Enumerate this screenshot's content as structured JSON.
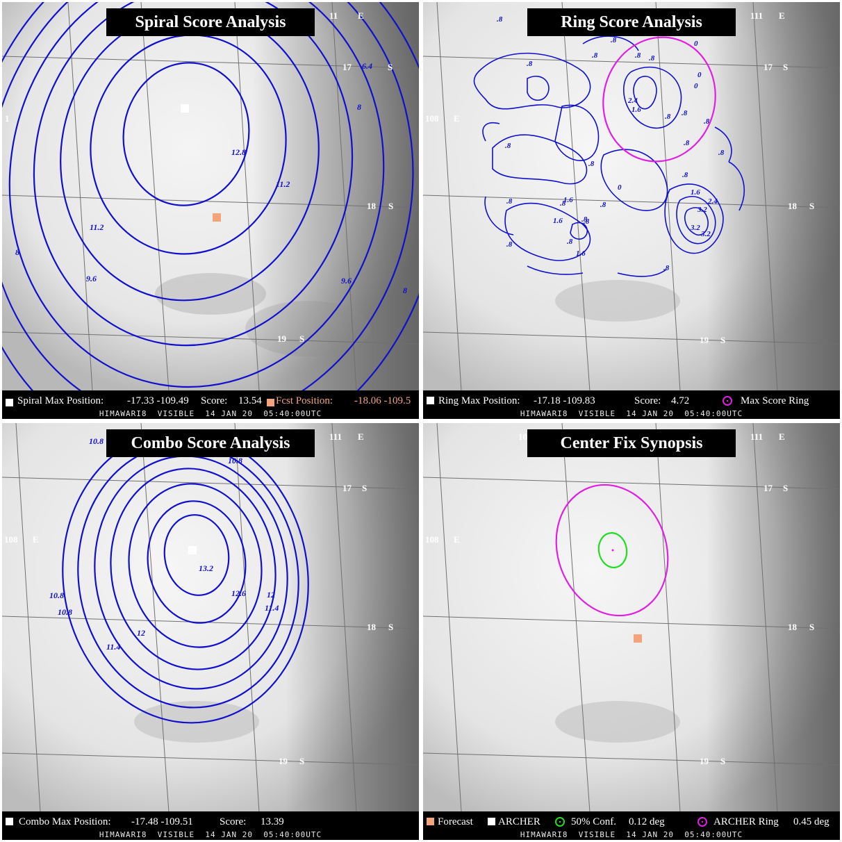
{
  "colors": {
    "contour": "#1010cc",
    "grid": "#707070",
    "forecast": "#f4a47a",
    "magenta": "#e020e0",
    "green": "#22dd22",
    "white": "#ffffff"
  },
  "panels": [
    {
      "id": "spiral",
      "title": "Spiral Score Analysis",
      "grid_labels": [
        "11",
        "E",
        "17",
        "S",
        "18",
        "S",
        "19",
        "S",
        "1"
      ],
      "contour_labels": [
        "6.4",
        "8",
        "12.8",
        "11.2",
        "11.2",
        "8",
        "9.6",
        "9.6",
        "8"
      ],
      "legend": {
        "max_label": "Spiral Max Position:",
        "max_value": "-17.33 -109.49",
        "score_label": "Score:",
        "score_value": "13.54",
        "fcst_label": "Fcst Position:",
        "fcst_value": "-18.06 -109.5"
      },
      "subtitle": "HIMAWARI8  VISIBLE  14 JAN 20  05:40:00UTC"
    },
    {
      "id": "ring",
      "title": "Ring Score Analysis",
      "grid_labels": [
        "111",
        "E",
        "17",
        "S",
        "108",
        "E",
        "18",
        "S",
        "19",
        "S"
      ],
      "contour_labels": [
        ".8",
        ".8",
        ".8",
        ".8",
        ".8",
        ".8",
        "0",
        "0",
        "0",
        "2.4",
        "1.6",
        ".8",
        ".8",
        ".8",
        ".8",
        ".8",
        ".8",
        ".8",
        ".8",
        ".8",
        "0",
        "2.4",
        "1.6",
        "3.2",
        "3.2",
        "3.2",
        ".8",
        ".8",
        ".8",
        "1.6",
        ".8",
        "1.6",
        ".8",
        "1.6",
        ".8",
        ".8"
      ],
      "legend": {
        "max_label": "Ring Max Position:",
        "max_value": "-17.18 -109.83",
        "score_label": "Score:",
        "score_value": "4.72",
        "ring_label": "Max Score Ring"
      },
      "subtitle": "HIMAWARI8  VISIBLE  14 JAN 20  05:40:00UTC"
    },
    {
      "id": "combo",
      "title": "Combo Score Analysis",
      "grid_labels": [
        "111",
        "E",
        "17",
        "S",
        "108",
        "E",
        "18",
        "S",
        "19",
        "S"
      ],
      "contour_labels": [
        "10.8",
        "10.8",
        "13.2",
        "12.6",
        "12",
        "11.4",
        "10.8",
        "10.8",
        "12",
        "11.4"
      ],
      "legend": {
        "max_label": "Combo Max Position:",
        "max_value": "-17.48 -109.51",
        "score_label": "Score:",
        "score_value": "13.39"
      },
      "subtitle": "HIMAWARI8  VISIBLE  14 JAN 20  05:40:00UTC"
    },
    {
      "id": "synopsis",
      "title": "Center Fix Synopsis",
      "grid_labels": [
        "10",
        "111",
        "E",
        "17",
        "S",
        "108",
        "E",
        "18",
        "S",
        "19",
        "S"
      ],
      "legend": {
        "forecast_label": "Forecast",
        "archer_label": "ARCHER",
        "conf_label": "50% Conf.",
        "conf_value": "0.12 deg",
        "ring_label": "ARCHER Ring",
        "ring_value": "0.45 deg"
      },
      "subtitle": "HIMAWARI8  VISIBLE  14 JAN 20  05:40:00UTC"
    }
  ]
}
